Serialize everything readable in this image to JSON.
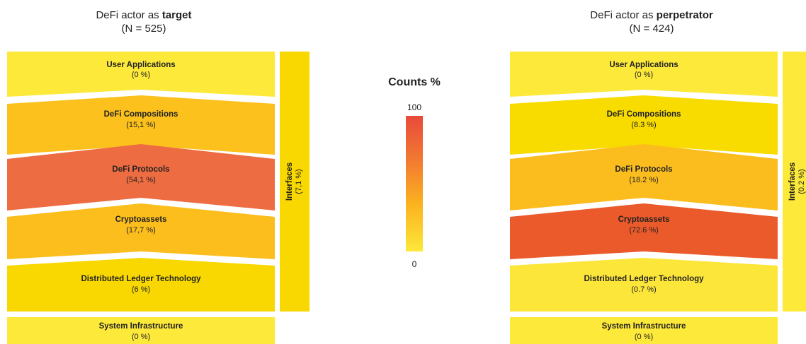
{
  "panels": [
    {
      "id": "target",
      "title_prefix": "DeFi actor as ",
      "title_bold": "target",
      "n_label": "(N = 525)",
      "layers": [
        {
          "name": "User Applications",
          "value": "(0 %)",
          "color": "#fde93a"
        },
        {
          "name": "DeFi Compositions",
          "value": "(15,1 %)",
          "color": "#fcc11d"
        },
        {
          "name": "DeFi Protocols",
          "value": "(54,1 %)",
          "color": "#ee6c41"
        },
        {
          "name": "Cryptoassets",
          "value": "(17,7 %)",
          "color": "#fbbe1d"
        },
        {
          "name": "Distributed Ledger Technology",
          "value": "(6 %)",
          "color": "#f8d800"
        },
        {
          "name": "System Infrastructure",
          "value": "(0 %)",
          "color": "#fde93a"
        }
      ],
      "interfaces": {
        "name": "Interfaces",
        "value": "(7,1 %)",
        "color": "#f8d800"
      }
    },
    {
      "id": "perpetrator",
      "title_prefix": "DeFi actor as ",
      "title_bold": "perpetrator",
      "n_label": "(N = 424)",
      "layers": [
        {
          "name": "User Applications",
          "value": "(0 %)",
          "color": "#fde93a"
        },
        {
          "name": "DeFi Compositions",
          "value": "(8.3 %)",
          "color": "#f8dc00"
        },
        {
          "name": "DeFi Protocols",
          "value": "(18.2 %)",
          "color": "#fbbd1e"
        },
        {
          "name": "Cryptoassets",
          "value": "(72.6 %)",
          "color": "#ea5a2b"
        },
        {
          "name": "Distributed Ledger Technology",
          "value": "(0.7 %)",
          "color": "#fde63a"
        },
        {
          "name": "System Infrastructure",
          "value": "(0 %)",
          "color": "#fde93a"
        }
      ],
      "interfaces": {
        "name": "Interfaces",
        "value": "(0.2 %)",
        "color": "#fde93a"
      }
    }
  ],
  "colorbar": {
    "title": "Counts %",
    "max_label": "100",
    "min_label": "0"
  }
}
